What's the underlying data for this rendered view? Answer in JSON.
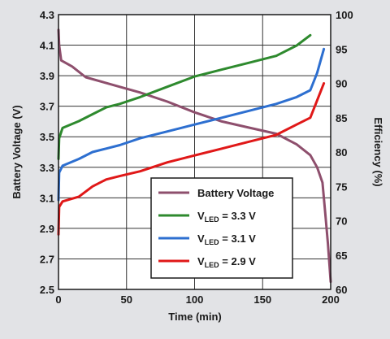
{
  "chart_data": {
    "type": "line",
    "xlabel": "Time (min)",
    "ylabel": "Battery Voltage (V)",
    "y2label": "Efficiency (%)",
    "xlim": [
      0,
      200
    ],
    "ylim": [
      2.5,
      4.3
    ],
    "y2lim": [
      60,
      100
    ],
    "x_ticks": [
      "0",
      "50",
      "100",
      "150",
      "200"
    ],
    "y_ticks": [
      "2.5",
      "2.7",
      "2.9",
      "3.1",
      "3.3",
      "3.5",
      "3.7",
      "3.9",
      "4.1",
      "4.3"
    ],
    "y2_ticks": [
      "60",
      "65",
      "70",
      "75",
      "80",
      "85",
      "90",
      "95",
      "100"
    ],
    "grid": true,
    "legend_position": "bottom-right",
    "series": [
      {
        "name": "Battery Voltage",
        "axis": "left",
        "color": "#8e4f6d",
        "x": [
          0,
          0.5,
          2,
          10,
          20,
          40,
          60,
          80,
          100,
          120,
          140,
          160,
          175,
          185,
          190,
          194,
          196,
          198,
          200
        ],
        "y": [
          4.2,
          4.1,
          4.0,
          3.96,
          3.89,
          3.84,
          3.79,
          3.73,
          3.66,
          3.6,
          3.56,
          3.52,
          3.45,
          3.38,
          3.3,
          3.2,
          3.0,
          2.8,
          2.55
        ]
      },
      {
        "name": "V_LED = 3.3 V",
        "name_parts": [
          "V",
          "LED",
          " = 3.3 V"
        ],
        "axis": "right",
        "color": "#2e8a2e",
        "x": [
          0,
          0.5,
          3,
          15,
          25,
          35,
          45,
          60,
          80,
          100,
          120,
          140,
          160,
          175,
          185
        ],
        "y": [
          79,
          82,
          83.5,
          84.5,
          85.5,
          86.5,
          87,
          88,
          89.5,
          91,
          92,
          93,
          94,
          95.5,
          97
        ]
      },
      {
        "name": "V_LED = 3.1 V",
        "name_parts": [
          "V",
          "LED",
          " = 3.1 V"
        ],
        "axis": "right",
        "color": "#2d6fd0",
        "x": [
          0,
          0.5,
          3,
          15,
          25,
          35,
          45,
          60,
          80,
          100,
          120,
          140,
          160,
          175,
          185,
          190,
          195
        ],
        "y": [
          73,
          77,
          78,
          79,
          80,
          80.5,
          81,
          82,
          83,
          84,
          85,
          86,
          87,
          88,
          89,
          91.5,
          95
        ]
      },
      {
        "name": "V_LED = 2.9 V",
        "name_parts": [
          "V",
          "LED",
          " = 2.9 V"
        ],
        "axis": "right",
        "color": "#e01818",
        "x": [
          0,
          0.5,
          3,
          15,
          25,
          35,
          45,
          60,
          80,
          100,
          120,
          140,
          160,
          175,
          185,
          190,
          195
        ],
        "y": [
          68,
          72,
          72.8,
          73.5,
          75,
          76,
          76.5,
          77.2,
          78.5,
          79.5,
          80.5,
          81.5,
          82.5,
          84,
          85,
          87.5,
          90
        ]
      }
    ]
  }
}
